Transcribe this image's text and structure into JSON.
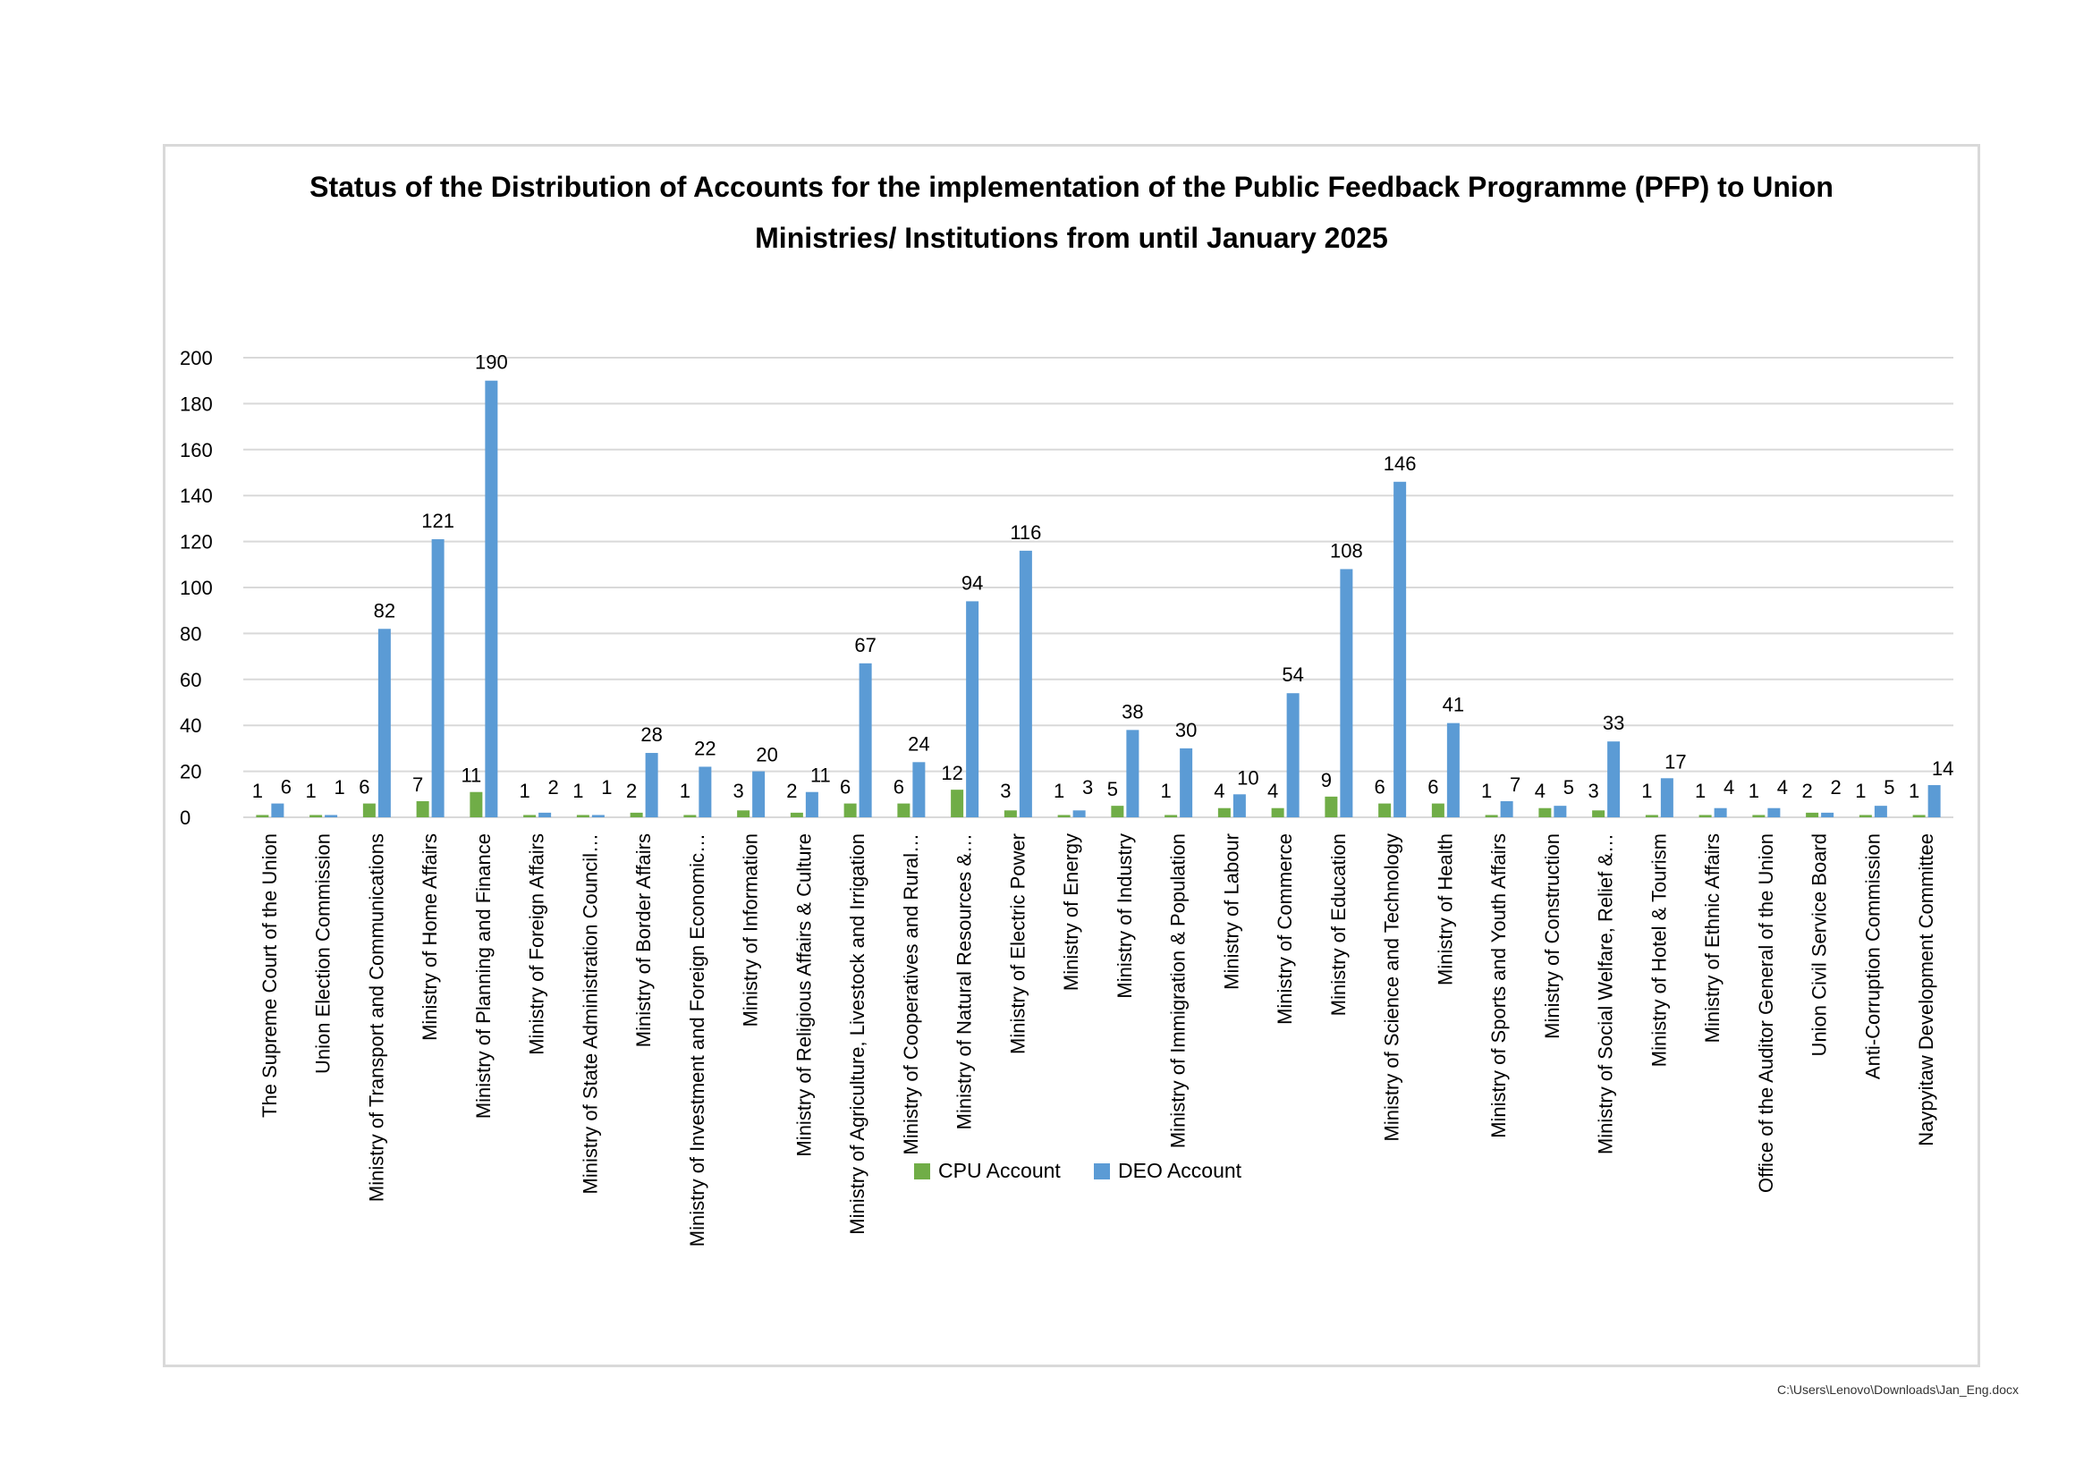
{
  "footer": {
    "file_path": "C:\\Users\\Lenovo\\Downloads\\Jan_Eng.docx"
  },
  "colors": {
    "cpu": "#70ad47",
    "deo": "#5b9bd5",
    "grid": "#d9d9d9",
    "frame": "#d9d9d9"
  },
  "chart_data": {
    "type": "bar",
    "title_lines": [
      "Status of the Distribution of Accounts for the implementation of the Public Feedback Programme (PFP) to Union",
      "Ministries/ Institutions from until January 2025"
    ],
    "ylim": [
      0,
      200
    ],
    "yticks": [
      0,
      20,
      40,
      60,
      80,
      100,
      120,
      140,
      160,
      180,
      200
    ],
    "grid": true,
    "legend_position": "bottom",
    "categories": [
      "The Supreme Court of the Union",
      "Union Election Commission",
      "Ministry of Transport and Communications",
      "Ministry of Home Affairs",
      "Ministry of Planning and Finance",
      "Ministry of Foreign Affairs",
      "Ministry of State Administration Council…",
      "Ministry of Border Affairs",
      "Ministry of Investment and Foreign Economic…",
      "Ministry of Information",
      "Ministry of Religious Affairs & Culture",
      "Ministry of Agriculture, Livestock and Irrigation",
      "Ministry of Cooperatives and Rural…",
      "Ministry of Natural Resources &…",
      "Ministry of Electric Power",
      "Ministry of Energy",
      "Ministry of Industry",
      "Ministry of Immigration & Population",
      "Ministry of Labour",
      "Ministry of Commerce",
      "Ministry of Education",
      "Ministry of Science and Technology",
      "Ministry of Health",
      "Ministry of Sports and Youth Affairs",
      "Ministry of Construction",
      "Ministry of Social Welfare, Relief &…",
      "Ministry of Hotel & Tourism",
      "Ministry of Ethnic Affairs",
      "Office of the Auditor General of the Union",
      "Union Civil Service Board",
      "Anti-Corruption Commission",
      "Naypyitaw Development Committee"
    ],
    "series": [
      {
        "name": "CPU Account",
        "color": "#70ad47",
        "values": [
          1,
          1,
          6,
          7,
          11,
          1,
          1,
          2,
          1,
          3,
          2,
          6,
          6,
          12,
          3,
          1,
          5,
          1,
          4,
          4,
          9,
          6,
          6,
          1,
          4,
          3,
          1,
          1,
          1,
          2,
          1,
          1
        ]
      },
      {
        "name": "DEO Account",
        "color": "#5b9bd5",
        "values": [
          6,
          1,
          82,
          121,
          190,
          2,
          1,
          28,
          22,
          20,
          11,
          67,
          24,
          94,
          116,
          3,
          38,
          30,
          10,
          54,
          108,
          146,
          41,
          7,
          5,
          33,
          17,
          4,
          4,
          2,
          5,
          14
        ]
      }
    ]
  }
}
